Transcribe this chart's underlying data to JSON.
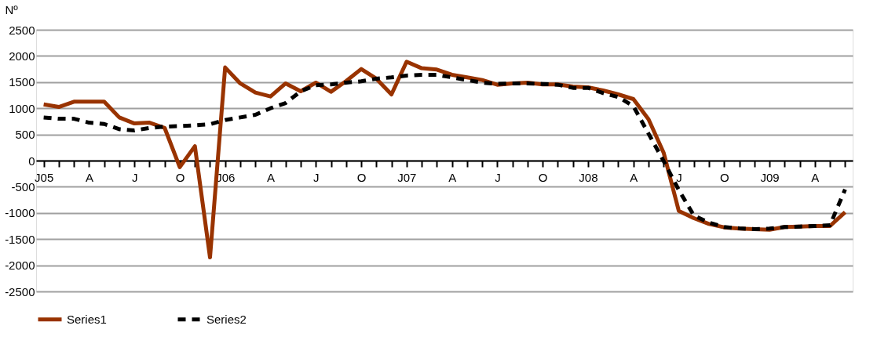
{
  "chart_data": {
    "type": "line",
    "ylabel": "Nº",
    "categories": [
      "J05",
      null,
      null,
      "A",
      null,
      null,
      "J",
      null,
      null,
      "O",
      null,
      null,
      "J06",
      null,
      null,
      "A",
      null,
      null,
      "J",
      null,
      null,
      "O",
      null,
      null,
      "J07",
      null,
      null,
      "A",
      null,
      null,
      "J",
      null,
      null,
      "O",
      null,
      null,
      "J08",
      null,
      null,
      "A",
      null,
      null,
      "J",
      null,
      null,
      "O",
      null,
      null,
      "J09",
      null,
      null,
      "A",
      null,
      null
    ],
    "series": [
      {
        "name": "Series1",
        "color": "#993300",
        "line_style": "solid",
        "values": [
          1075,
          1025,
          1125,
          1125,
          1125,
          825,
          710,
          725,
          625,
          -125,
          275,
          -1850,
          1780,
          1475,
          1300,
          1225,
          1475,
          1325,
          1490,
          1315,
          1520,
          1750,
          1565,
          1265,
          1890,
          1765,
          1740,
          1640,
          1590,
          1540,
          1450,
          1475,
          1490,
          1455,
          1455,
          1415,
          1400,
          1340,
          1265,
          1175,
          790,
          150,
          -960,
          -1100,
          -1210,
          -1275,
          -1300,
          -1310,
          -1320,
          -1270,
          -1260,
          -1250,
          -1250,
          -985
        ]
      },
      {
        "name": "Series2",
        "color": "#000000",
        "line_style": "dashed",
        "values": [
          825,
          800,
          800,
          725,
          700,
          600,
          575,
          625,
          650,
          660,
          675,
          695,
          775,
          825,
          875,
          1000,
          1100,
          1325,
          1440,
          1455,
          1490,
          1515,
          1565,
          1590,
          1625,
          1640,
          1640,
          1590,
          1540,
          1490,
          1465,
          1475,
          1475,
          1465,
          1450,
          1390,
          1390,
          1290,
          1215,
          1040,
          515,
          -10,
          -560,
          -1050,
          -1185,
          -1270,
          -1295,
          -1310,
          -1300,
          -1270,
          -1260,
          -1250,
          -1235,
          -550
        ]
      }
    ],
    "ylim": [
      -2500,
      2500
    ],
    "yticks": [
      -2500,
      -2000,
      -1500,
      -1000,
      -500,
      0,
      500,
      1000,
      1500,
      2000,
      2500
    ],
    "grid": "y",
    "legend": "bottom",
    "marker": "none"
  }
}
